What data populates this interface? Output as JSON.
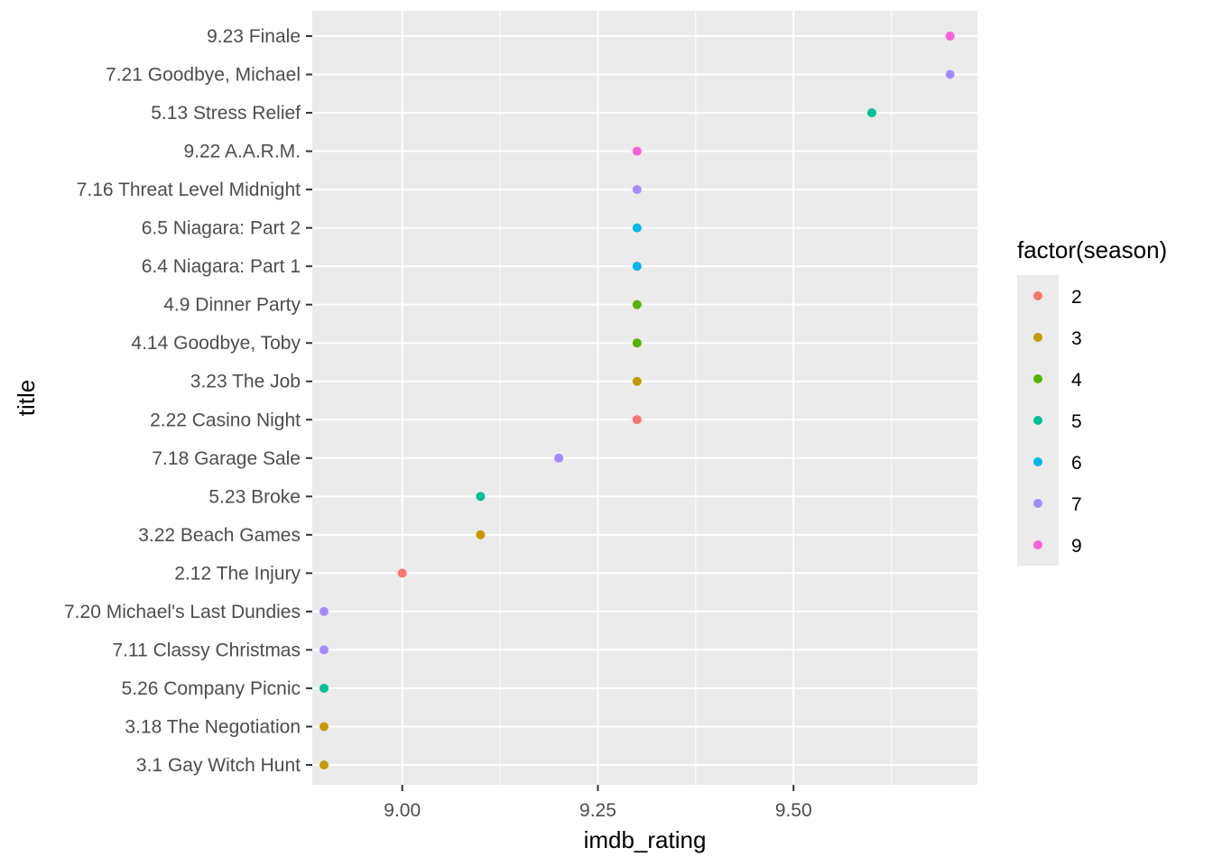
{
  "chart_data": {
    "type": "scatter",
    "xlabel": "imdb_rating",
    "ylabel": "title",
    "xlim": [
      8.885,
      9.735
    ],
    "x_ticks": [
      "9.00",
      "9.25",
      "9.50"
    ],
    "x_tick_values": [
      9.0,
      9.25,
      9.5
    ],
    "grid": true,
    "legend": {
      "title": "factor(season)",
      "placement": "right",
      "entries": [
        {
          "label": "2",
          "color": "#F8766D"
        },
        {
          "label": "3",
          "color": "#C49A00"
        },
        {
          "label": "4",
          "color": "#53B400"
        },
        {
          "label": "5",
          "color": "#00C094"
        },
        {
          "label": "6",
          "color": "#00B6EB"
        },
        {
          "label": "7",
          "color": "#A58AFF"
        },
        {
          "label": "9",
          "color": "#FB61D7"
        }
      ]
    },
    "categories": [
      "9.23 Finale",
      "7.21 Goodbye, Michael",
      "5.13 Stress Relief",
      "9.22 A.A.R.M.",
      "7.16 Threat Level Midnight",
      "6.5 Niagara: Part 2",
      "6.4 Niagara: Part 1",
      "4.9 Dinner Party",
      "4.14 Goodbye, Toby",
      "3.23 The Job",
      "2.22 Casino Night",
      "7.18 Garage Sale",
      "5.23 Broke",
      "3.22 Beach Games",
      "2.12 The Injury",
      "7.20 Michael's Last Dundies",
      "7.11 Classy Christmas",
      "5.26 Company Picnic",
      "3.18 The Negotiation",
      "3.1 Gay Witch Hunt"
    ],
    "points": [
      {
        "title": "9.23 Finale",
        "x": 9.7,
        "season": "9"
      },
      {
        "title": "7.21 Goodbye, Michael",
        "x": 9.7,
        "season": "7"
      },
      {
        "title": "5.13 Stress Relief",
        "x": 9.6,
        "season": "5"
      },
      {
        "title": "9.22 A.A.R.M.",
        "x": 9.3,
        "season": "9"
      },
      {
        "title": "7.16 Threat Level Midnight",
        "x": 9.3,
        "season": "7"
      },
      {
        "title": "6.5 Niagara: Part 2",
        "x": 9.3,
        "season": "6"
      },
      {
        "title": "6.4 Niagara: Part 1",
        "x": 9.3,
        "season": "6"
      },
      {
        "title": "4.9 Dinner Party",
        "x": 9.3,
        "season": "4"
      },
      {
        "title": "4.14 Goodbye, Toby",
        "x": 9.3,
        "season": "4"
      },
      {
        "title": "3.23 The Job",
        "x": 9.3,
        "season": "3"
      },
      {
        "title": "2.22 Casino Night",
        "x": 9.3,
        "season": "2"
      },
      {
        "title": "7.18 Garage Sale",
        "x": 9.2,
        "season": "7"
      },
      {
        "title": "5.23 Broke",
        "x": 9.1,
        "season": "5"
      },
      {
        "title": "3.22 Beach Games",
        "x": 9.1,
        "season": "3"
      },
      {
        "title": "2.12 The Injury",
        "x": 9.0,
        "season": "2"
      },
      {
        "title": "7.20 Michael's Last Dundies",
        "x": 8.9,
        "season": "7"
      },
      {
        "title": "7.11 Classy Christmas",
        "x": 8.9,
        "season": "7"
      },
      {
        "title": "5.26 Company Picnic",
        "x": 8.9,
        "season": "5"
      },
      {
        "title": "3.18 The Negotiation",
        "x": 8.9,
        "season": "3"
      },
      {
        "title": "3.1 Gay Witch Hunt",
        "x": 8.9,
        "season": "3"
      }
    ],
    "colors": {
      "panel_background": "#EBEBEB",
      "grid_major": "#FFFFFF",
      "tick_text": "#4D4D4D",
      "tick_mark": "#333333"
    }
  }
}
